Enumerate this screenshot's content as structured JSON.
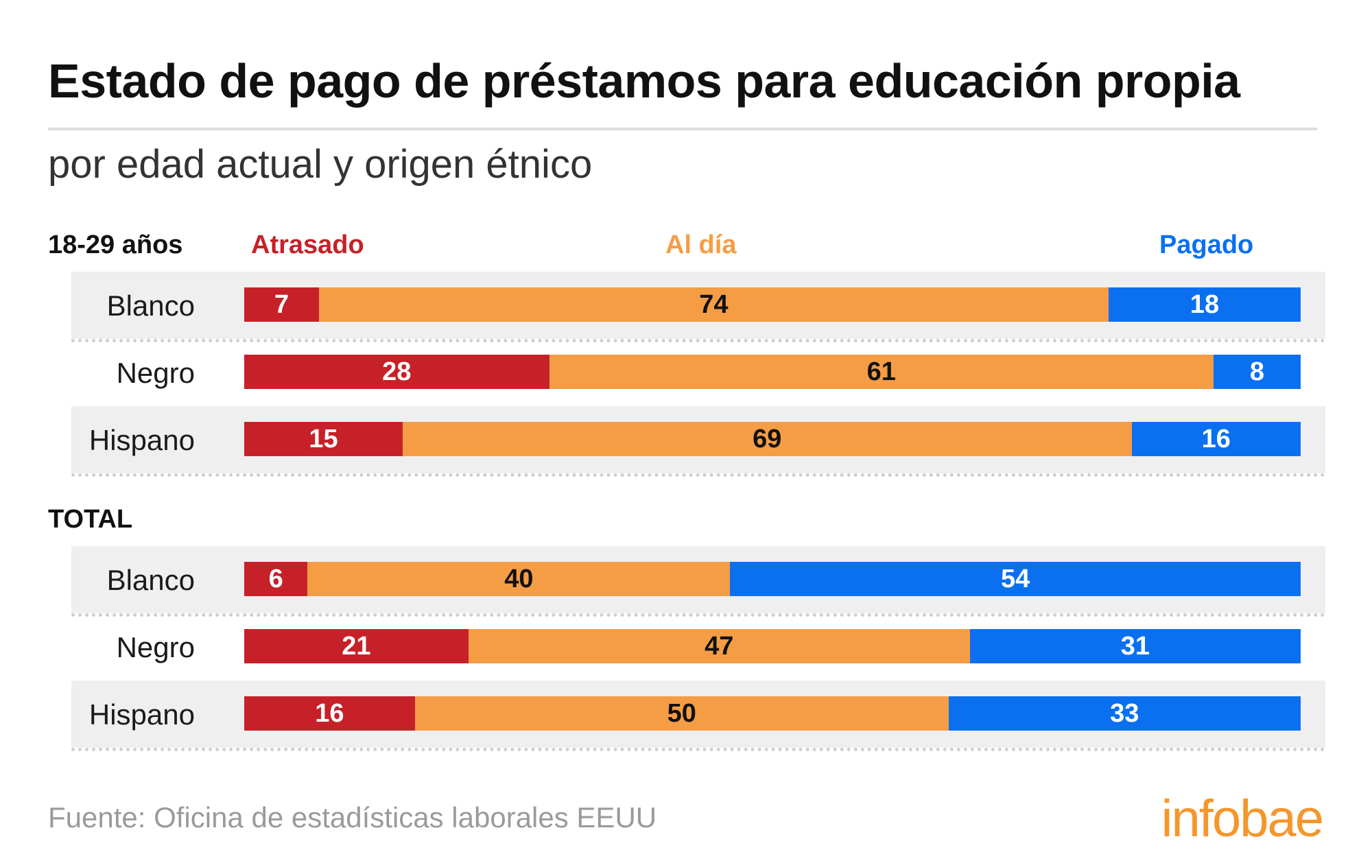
{
  "title": "Estado de pago de préstamos para educación propia",
  "subtitle": "por edad actual y origen étnico",
  "source": "Fuente: Oficina de estadísticas laborales EEUU",
  "logo": "infobae",
  "colors": {
    "atrasado": "#c62128",
    "al_dia": "#f59d45",
    "pagado": "#0a70f0",
    "logo": "#f5962b"
  },
  "legend": [
    "Atrasado",
    "Al día",
    "Pagado"
  ],
  "sections": [
    {
      "label": "18-29 años",
      "rows": [
        {
          "label": "Blanco",
          "values": [
            7,
            74,
            18
          ]
        },
        {
          "label": "Negro",
          "values": [
            28,
            61,
            8
          ]
        },
        {
          "label": "Hispano",
          "values": [
            15,
            69,
            16
          ]
        }
      ]
    },
    {
      "label": "TOTAL",
      "rows": [
        {
          "label": "Blanco",
          "values": [
            6,
            40,
            54
          ]
        },
        {
          "label": "Negro",
          "values": [
            21,
            47,
            31
          ]
        },
        {
          "label": "Hispano",
          "values": [
            16,
            50,
            33
          ]
        }
      ]
    }
  ],
  "chart_data": {
    "type": "bar",
    "orientation": "horizontal",
    "stacked": true,
    "title": "Estado de pago de préstamos para educación propia",
    "subtitle": "por edad actual y origen étnico",
    "groups": [
      "18-29 años",
      "TOTAL"
    ],
    "categories": [
      "Blanco",
      "Negro",
      "Hispano"
    ],
    "series": [
      {
        "name": "Atrasado",
        "values": {
          "18-29 años": [
            7,
            28,
            15
          ],
          "TOTAL": [
            6,
            21,
            16
          ]
        }
      },
      {
        "name": "Al día",
        "values": {
          "18-29 años": [
            74,
            61,
            69
          ],
          "TOTAL": [
            40,
            47,
            50
          ]
        }
      },
      {
        "name": "Pagado",
        "values": {
          "18-29 años": [
            18,
            8,
            16
          ],
          "TOTAL": [
            54,
            31,
            33
          ]
        }
      }
    ],
    "legend_position": "top",
    "grid": false
  }
}
